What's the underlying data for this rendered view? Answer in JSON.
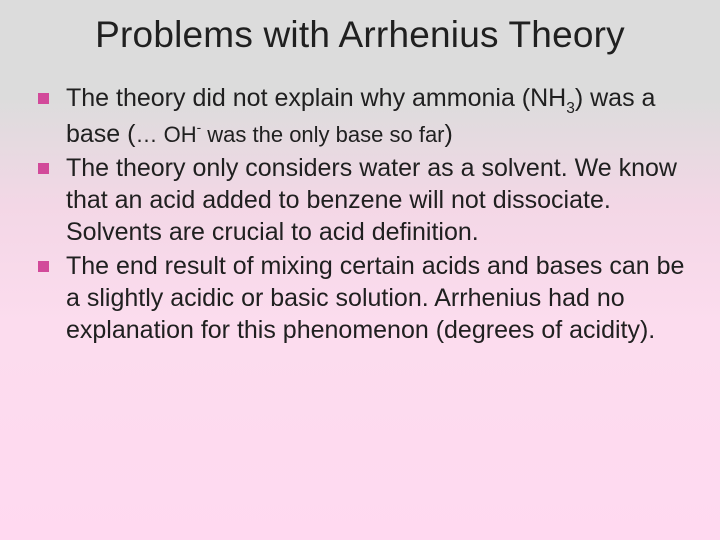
{
  "background": {
    "gradient_stops": [
      "#dcdcdc",
      "#dcdcdc",
      "#f3d7e6",
      "#fcdcee",
      "#ffd9f0"
    ]
  },
  "title": {
    "text": "Problems with Arrhenius Theory",
    "fontsize": 37,
    "color": "#202020"
  },
  "bullet_style": {
    "marker_color": "#d24a9a",
    "marker_size": 11,
    "text_color": "#202020",
    "fontsize": 25
  },
  "bullets": [
    {
      "pre": "The theory did not explain why ammonia (NH",
      "sub1": "3",
      "mid1": ") was a base (",
      "small": "… OH",
      "sup": "-",
      "small2": " was the only base so far",
      "post": ")"
    },
    {
      "text": "The theory only considers water as a solvent. We know that an acid added to benzene will not dissociate. Solvents are crucial to acid definition."
    },
    {
      "text": "The end result of mixing certain acids and bases can be a slightly acidic or basic solution. Arrhenius had no explanation for this phenomenon (degrees of acidity)."
    }
  ]
}
